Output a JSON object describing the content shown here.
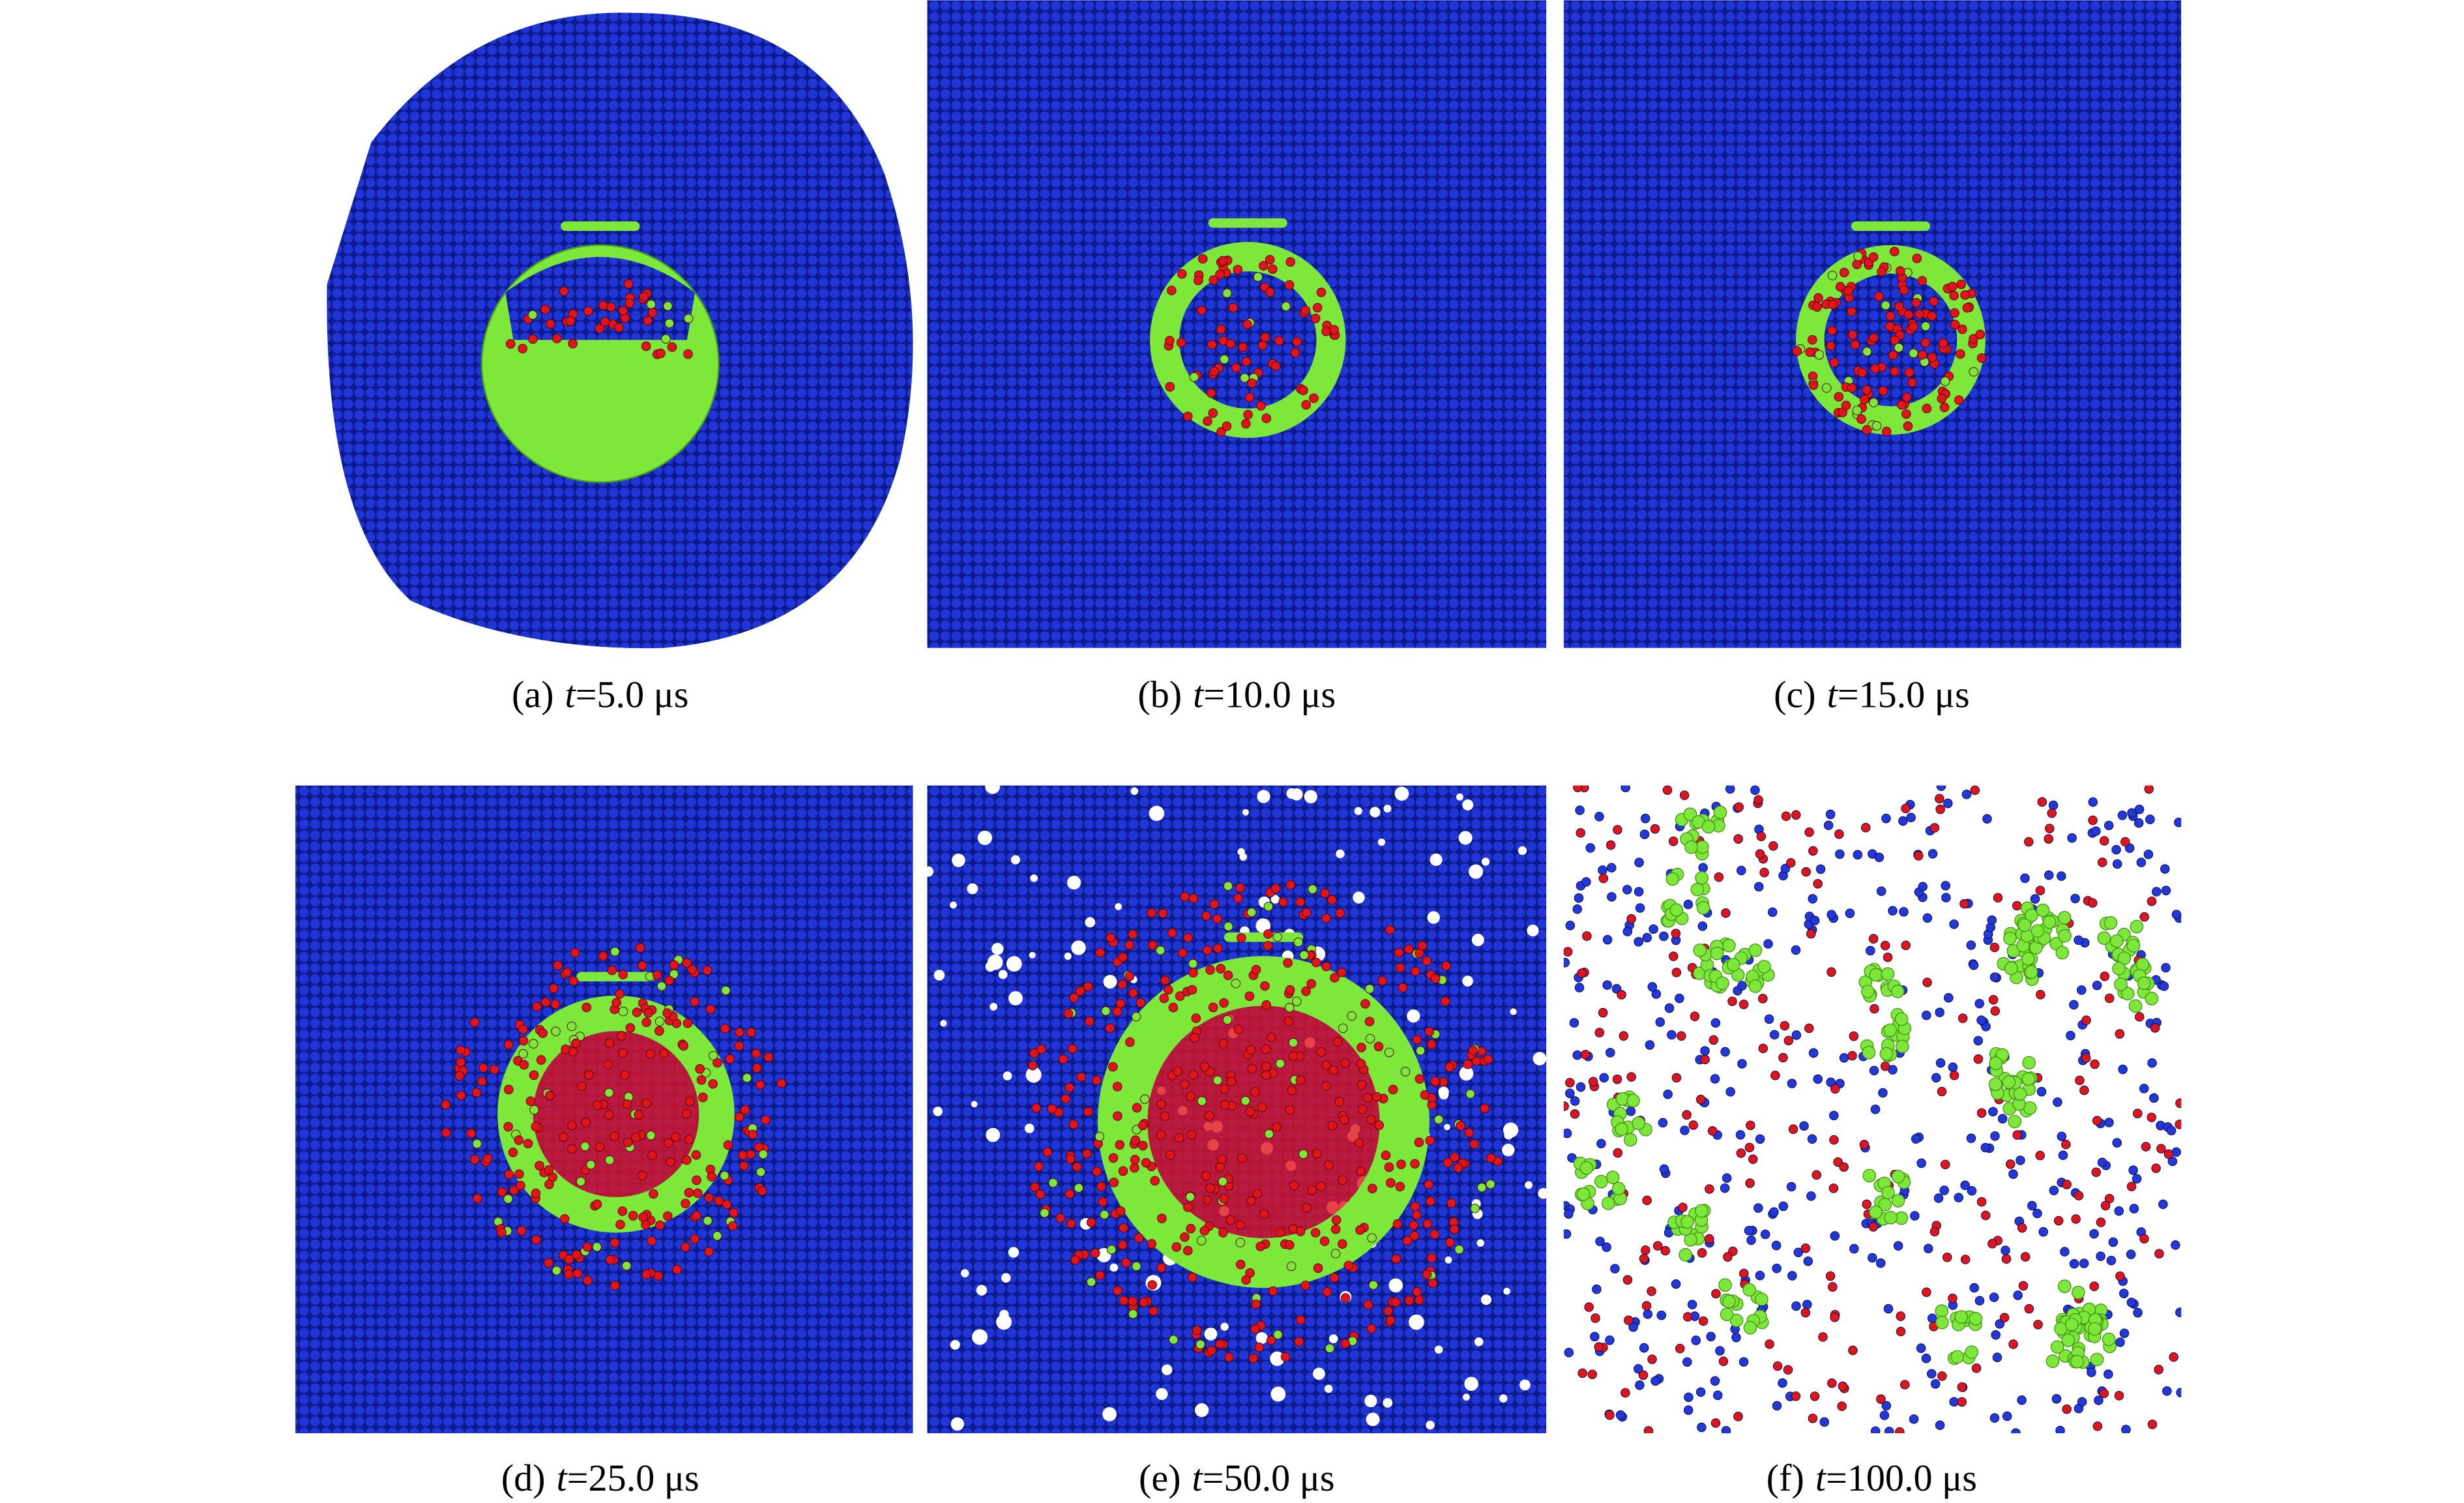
{
  "panels": [
    {
      "label": "(a)",
      "var": "t",
      "value": "=5.0 μs"
    },
    {
      "label": "(b)",
      "var": "t",
      "value": "=10.0 μs"
    },
    {
      "label": "(c)",
      "var": "t",
      "value": "=15.0 μs"
    },
    {
      "label": "(d)",
      "var": "t",
      "value": "=25.0 μs"
    },
    {
      "label": "(e)",
      "var": "t",
      "value": "=50.0 μs"
    },
    {
      "label": "(f)",
      "var": "t",
      "value": "=100.0 μs"
    }
  ]
}
